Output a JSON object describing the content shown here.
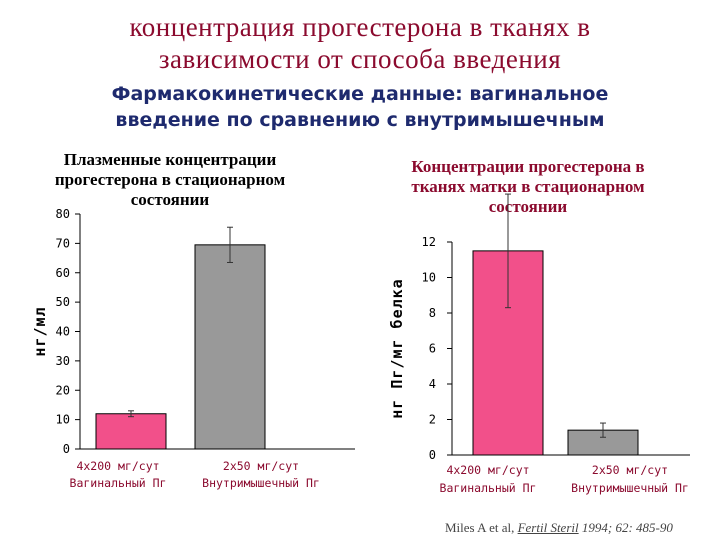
{
  "header": {
    "title_line1": "концентрация  прогестерона  в   тканях  в",
    "title_line2": "зависимости  от способа  введения",
    "subtitle_line1": "Фармакокинетические данные: вагинальное",
    "subtitle_line2": "введение по сравнению с внутримышечным"
  },
  "citation": {
    "authors": "Miles A et al,",
    "journal": "Fertil Steril",
    "year": "1994;",
    "pages": "62: 485-90"
  },
  "colors": {
    "pink": "#f2508a",
    "gray": "#999999",
    "title": "#8b0a2e",
    "subtitle": "#1e2a6e"
  },
  "chart_data": [
    {
      "type": "bar",
      "title_lines": [
        "Плазменные концентрации",
        "прогестерона в стационарном",
        "состоянии"
      ],
      "ylabel": "нг/мл",
      "ylim": [
        0,
        80
      ],
      "yticks": [
        0,
        10,
        20,
        30,
        40,
        50,
        60,
        70,
        80
      ],
      "categories": [
        "4x200 мг/сут\nВагинальный Пг",
        "2x50 мг/сут\nВнутримышечный Пг"
      ],
      "cat_line1": [
        "4x200 мг/сут",
        "2x50 мг/сут"
      ],
      "cat_line2": [
        "Вагинальный Пг",
        "Внутримышечный Пг"
      ],
      "values": [
        12,
        69.5
      ],
      "errors": [
        1,
        6
      ],
      "bar_colors": [
        "#f2508a",
        "#999999"
      ],
      "grid": false
    },
    {
      "type": "bar",
      "title_lines": [
        "Концентрации прогестерона в",
        "тканях матки в стационарном",
        "состоянии"
      ],
      "ylabel": "нг Пг/мг белка",
      "ylim": [
        0,
        12
      ],
      "yticks": [
        0,
        2,
        4,
        6,
        8,
        10,
        12
      ],
      "categories": [
        "4x200 мг/сут\nВагинальный Пг",
        "2x50 мг/сут\nВнутримышечный Пг"
      ],
      "cat_line1": [
        "4x200 мг/сут",
        "2x50 мг/сут"
      ],
      "cat_line2": [
        "Вагинальный Пг",
        "Внутримышечный Пг"
      ],
      "values": [
        11.5,
        1.4
      ],
      "errors": [
        3.2,
        0.4
      ],
      "bar_colors": [
        "#f2508a",
        "#999999"
      ],
      "grid": false
    }
  ]
}
